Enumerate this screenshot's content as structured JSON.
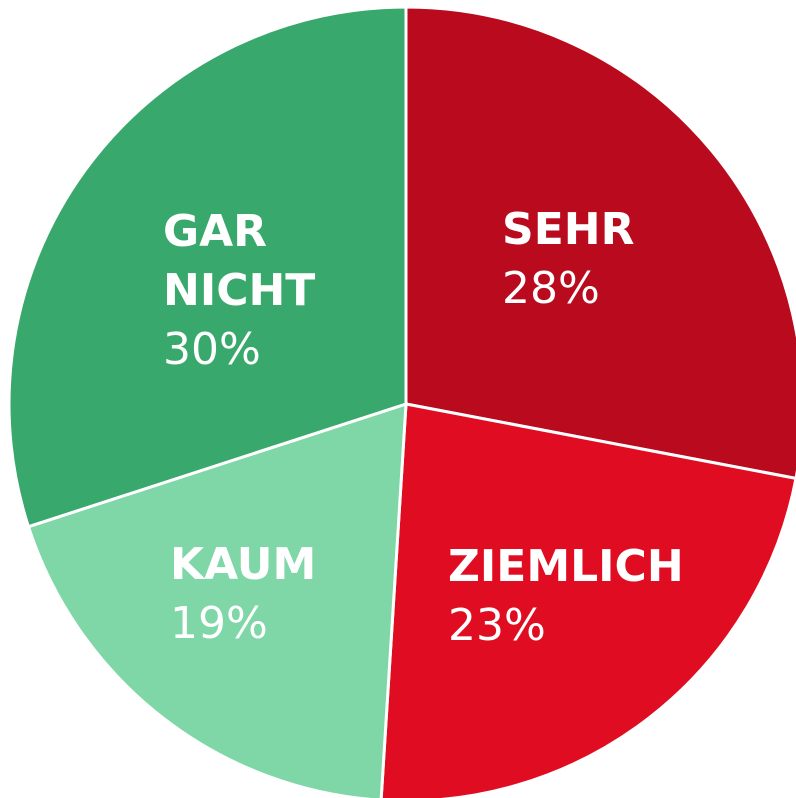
{
  "chart_data": {
    "type": "pie",
    "categories": [
      "SEHR",
      "ZIEMLICH",
      "KAUM",
      "GAR NICHT"
    ],
    "values": [
      28,
      23,
      19,
      30
    ],
    "value_labels": [
      "28%",
      "23%",
      "19%",
      "30%"
    ],
    "colors": [
      "#b90a1e",
      "#e00d22",
      "#7fd6a6",
      "#38a86c"
    ]
  }
}
